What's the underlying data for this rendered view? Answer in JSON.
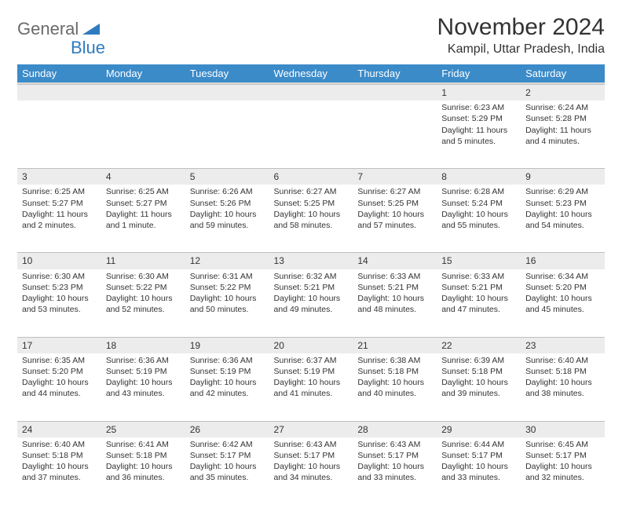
{
  "logo": {
    "general": "General",
    "blue": "Blue"
  },
  "title": "November 2024",
  "location": "Kampil, Uttar Pradesh, India",
  "weekdays": [
    "Sunday",
    "Monday",
    "Tuesday",
    "Wednesday",
    "Thursday",
    "Friday",
    "Saturday"
  ],
  "colors": {
    "header_bg": "#3b8bc9",
    "header_text": "#ffffff",
    "daynum_bg": "#ececec",
    "daynum_border": "#bfbfbf",
    "logo_gray": "#6a6a6a",
    "logo_blue": "#2f7bbf",
    "text": "#333333",
    "page_bg": "#ffffff"
  },
  "weeks": [
    [
      null,
      null,
      null,
      null,
      null,
      {
        "n": "1",
        "sr": "6:23 AM",
        "ss": "5:29 PM",
        "dl": "11 hours and 5 minutes."
      },
      {
        "n": "2",
        "sr": "6:24 AM",
        "ss": "5:28 PM",
        "dl": "11 hours and 4 minutes."
      }
    ],
    [
      {
        "n": "3",
        "sr": "6:25 AM",
        "ss": "5:27 PM",
        "dl": "11 hours and 2 minutes."
      },
      {
        "n": "4",
        "sr": "6:25 AM",
        "ss": "5:27 PM",
        "dl": "11 hours and 1 minute."
      },
      {
        "n": "5",
        "sr": "6:26 AM",
        "ss": "5:26 PM",
        "dl": "10 hours and 59 minutes."
      },
      {
        "n": "6",
        "sr": "6:27 AM",
        "ss": "5:25 PM",
        "dl": "10 hours and 58 minutes."
      },
      {
        "n": "7",
        "sr": "6:27 AM",
        "ss": "5:25 PM",
        "dl": "10 hours and 57 minutes."
      },
      {
        "n": "8",
        "sr": "6:28 AM",
        "ss": "5:24 PM",
        "dl": "10 hours and 55 minutes."
      },
      {
        "n": "9",
        "sr": "6:29 AM",
        "ss": "5:23 PM",
        "dl": "10 hours and 54 minutes."
      }
    ],
    [
      {
        "n": "10",
        "sr": "6:30 AM",
        "ss": "5:23 PM",
        "dl": "10 hours and 53 minutes."
      },
      {
        "n": "11",
        "sr": "6:30 AM",
        "ss": "5:22 PM",
        "dl": "10 hours and 52 minutes."
      },
      {
        "n": "12",
        "sr": "6:31 AM",
        "ss": "5:22 PM",
        "dl": "10 hours and 50 minutes."
      },
      {
        "n": "13",
        "sr": "6:32 AM",
        "ss": "5:21 PM",
        "dl": "10 hours and 49 minutes."
      },
      {
        "n": "14",
        "sr": "6:33 AM",
        "ss": "5:21 PM",
        "dl": "10 hours and 48 minutes."
      },
      {
        "n": "15",
        "sr": "6:33 AM",
        "ss": "5:21 PM",
        "dl": "10 hours and 47 minutes."
      },
      {
        "n": "16",
        "sr": "6:34 AM",
        "ss": "5:20 PM",
        "dl": "10 hours and 45 minutes."
      }
    ],
    [
      {
        "n": "17",
        "sr": "6:35 AM",
        "ss": "5:20 PM",
        "dl": "10 hours and 44 minutes."
      },
      {
        "n": "18",
        "sr": "6:36 AM",
        "ss": "5:19 PM",
        "dl": "10 hours and 43 minutes."
      },
      {
        "n": "19",
        "sr": "6:36 AM",
        "ss": "5:19 PM",
        "dl": "10 hours and 42 minutes."
      },
      {
        "n": "20",
        "sr": "6:37 AM",
        "ss": "5:19 PM",
        "dl": "10 hours and 41 minutes."
      },
      {
        "n": "21",
        "sr": "6:38 AM",
        "ss": "5:18 PM",
        "dl": "10 hours and 40 minutes."
      },
      {
        "n": "22",
        "sr": "6:39 AM",
        "ss": "5:18 PM",
        "dl": "10 hours and 39 minutes."
      },
      {
        "n": "23",
        "sr": "6:40 AM",
        "ss": "5:18 PM",
        "dl": "10 hours and 38 minutes."
      }
    ],
    [
      {
        "n": "24",
        "sr": "6:40 AM",
        "ss": "5:18 PM",
        "dl": "10 hours and 37 minutes."
      },
      {
        "n": "25",
        "sr": "6:41 AM",
        "ss": "5:18 PM",
        "dl": "10 hours and 36 minutes."
      },
      {
        "n": "26",
        "sr": "6:42 AM",
        "ss": "5:17 PM",
        "dl": "10 hours and 35 minutes."
      },
      {
        "n": "27",
        "sr": "6:43 AM",
        "ss": "5:17 PM",
        "dl": "10 hours and 34 minutes."
      },
      {
        "n": "28",
        "sr": "6:43 AM",
        "ss": "5:17 PM",
        "dl": "10 hours and 33 minutes."
      },
      {
        "n": "29",
        "sr": "6:44 AM",
        "ss": "5:17 PM",
        "dl": "10 hours and 33 minutes."
      },
      {
        "n": "30",
        "sr": "6:45 AM",
        "ss": "5:17 PM",
        "dl": "10 hours and 32 minutes."
      }
    ]
  ],
  "labels": {
    "sunrise": "Sunrise:",
    "sunset": "Sunset:",
    "daylight": "Daylight:"
  }
}
